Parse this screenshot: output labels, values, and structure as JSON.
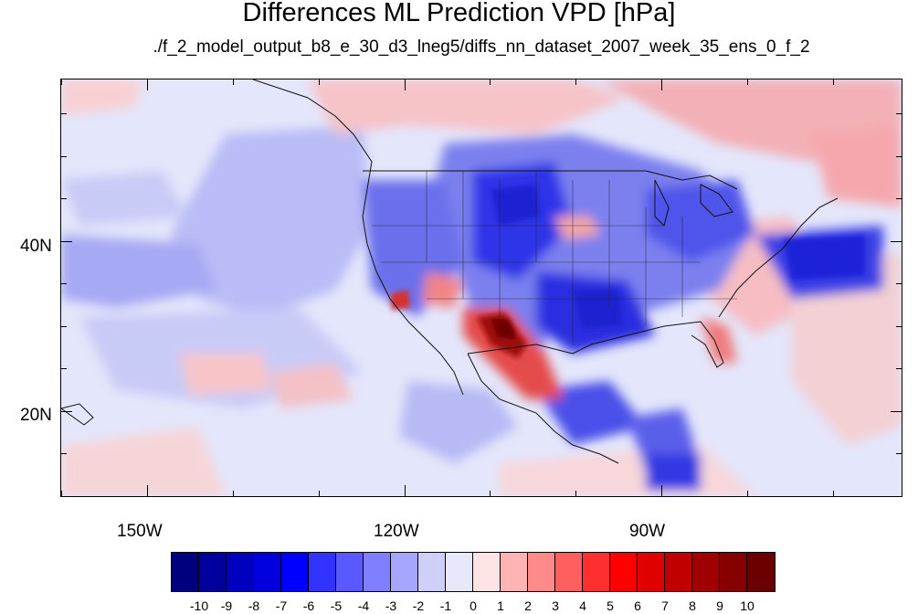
{
  "title": "Differences ML Prediction VPD [hPa]",
  "subtitle": "./f_2_model_output_b8_e_30_d3_lneg5/diffs_nn_dataset_2007_week_35_ens_0_f_2",
  "map": {
    "lon_range": [
      -160,
      -62
    ],
    "lat_range": [
      10,
      59
    ],
    "lon_ticks": [
      {
        "lon": -150,
        "label": "150W"
      },
      {
        "lon": -120,
        "label": "120W"
      },
      {
        "lon": -90,
        "label": "90W"
      }
    ],
    "lat_ticks": [
      {
        "lat": 40,
        "label": "40N"
      },
      {
        "lat": 20,
        "label": "20N"
      }
    ]
  },
  "colorbar": {
    "colors": [
      "#00007f",
      "#00009f",
      "#0000bf",
      "#0000df",
      "#0000ff",
      "#3333ff",
      "#5959ff",
      "#8080ff",
      "#a6a6ff",
      "#cfd0f7",
      "#e8e8fb",
      "#fde3e3",
      "#ffb3b3",
      "#ff8a8a",
      "#ff5f5f",
      "#ff2f2f",
      "#ff0000",
      "#e00000",
      "#c00000",
      "#a00000",
      "#860000",
      "#6a0000"
    ],
    "labels": [
      "-10",
      "-9",
      "-8",
      "-7",
      "-6",
      "-5",
      "-4",
      "-3",
      "-2",
      "-1",
      "0",
      "1",
      "2",
      "3",
      "4",
      "5",
      "6",
      "7",
      "8",
      "9",
      "10"
    ]
  }
}
